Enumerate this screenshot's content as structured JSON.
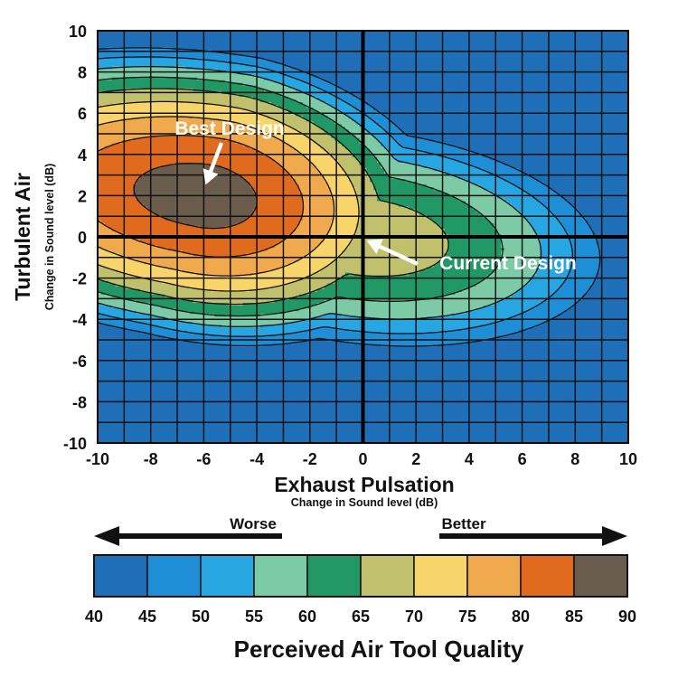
{
  "chart_data": {
    "type": "heatmap",
    "subtype": "contour",
    "xlabel": "Exhaust Pulsation",
    "xlabel_sub": "Change in Sound level (dB)",
    "ylabel": "Turbulent Air",
    "ylabel_sub": "Change in Sound level (dB)",
    "xlim": [
      -10,
      10
    ],
    "ylim": [
      -10,
      10
    ],
    "x_ticks": [
      -10,
      -8,
      -6,
      -4,
      -2,
      0,
      2,
      4,
      6,
      8,
      10
    ],
    "y_ticks": [
      -10,
      -8,
      -6,
      -4,
      -2,
      0,
      2,
      4,
      6,
      8,
      10
    ],
    "x_tick_labels": [
      "-10",
      "-8",
      "-6",
      "-4",
      "-2",
      "0",
      "2",
      "4",
      "6",
      "8",
      "10"
    ],
    "y_tick_labels": [
      "-10",
      "-8",
      "-6",
      "-4",
      "-2",
      "0",
      "2",
      "4",
      "6",
      "8",
      "10"
    ],
    "grid": true,
    "grid_step": 1,
    "optimum": {
      "x": -6,
      "y": 2,
      "value": 87
    },
    "current": {
      "x": 0,
      "y": 0,
      "value": 70
    },
    "annotations": [
      {
        "text": "Best Design",
        "x": -6,
        "y": 2
      },
      {
        "text": "Current Design",
        "x": 0,
        "y": 0
      }
    ],
    "levels": [
      40,
      45,
      50,
      55,
      60,
      65,
      70,
      75,
      80,
      85,
      90
    ],
    "level_colors": [
      "#1f6fb8",
      "#1e8fd6",
      "#27a6e2",
      "#7ccaa6",
      "#219866",
      "#c1c06d",
      "#f8d56b",
      "#f0a94c",
      "#e06a1e",
      "#6b5d4d"
    ],
    "legend": {
      "title": "Perceived Air Tool Quality",
      "labels": [
        "40",
        "45",
        "50",
        "55",
        "60",
        "65",
        "70",
        "75",
        "80",
        "85",
        "90"
      ],
      "worse": "Worse",
      "better": "Better"
    }
  }
}
